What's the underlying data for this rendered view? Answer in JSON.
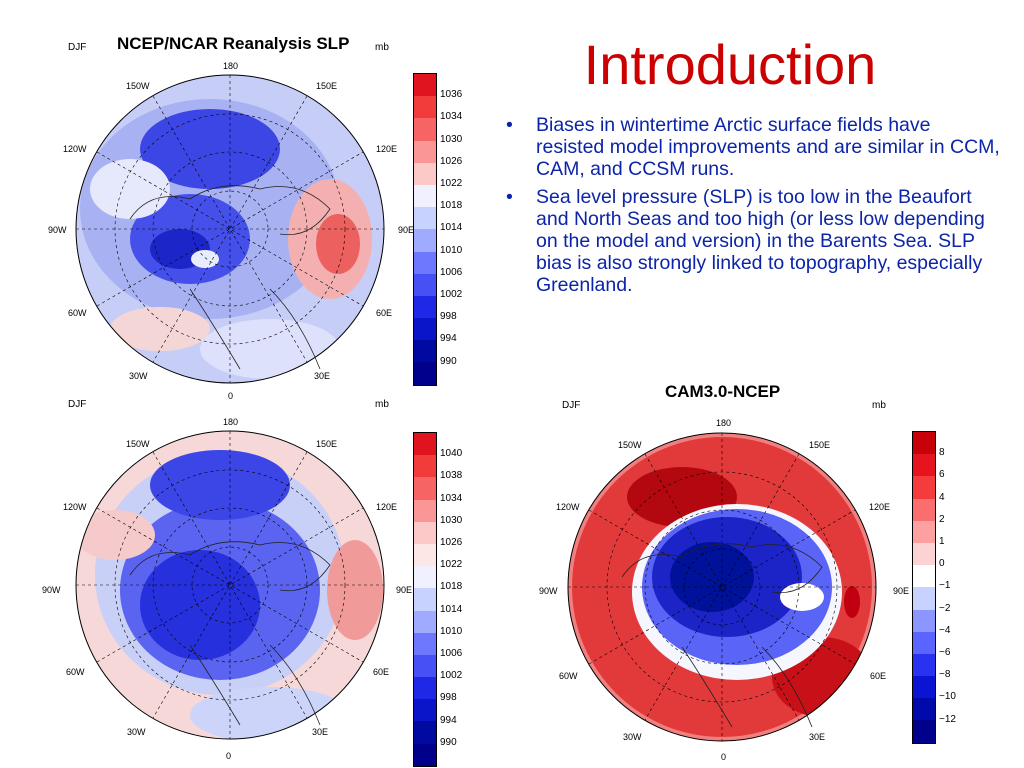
{
  "slide": {
    "title": "Introduction",
    "bullets": [
      "Biases in wintertime Arctic surface fields have resisted model improvements and are similar in CCM, CAM, and CCSM runs.",
      "Sea level pressure (SLP) is too low in the Beaufort and North Seas and too high (or less low depending on the model and version) in the Barents Sea. SLP bias is also strongly linked to topography, especially Greenland."
    ]
  },
  "maps": [
    {
      "title": "NCEP/NCAR Reanalysis SLP",
      "season": "DJF",
      "units": "mb",
      "lon_labels": {
        "top": "180",
        "tl": "150W",
        "tr": "150E",
        "l2": "120W",
        "r2": "120E",
        "left": "90W",
        "right": "90E",
        "bl2": "60W",
        "br2": "60E",
        "bl": "30W",
        "br": "30E",
        "bottom": "0"
      },
      "colorbar": {
        "labels": [
          "1036",
          "1034",
          "1030",
          "1026",
          "1022",
          "1018",
          "1014",
          "1010",
          "1006",
          "1002",
          "998",
          "994",
          "990"
        ],
        "colors": [
          "#e0141e",
          "#f23c3c",
          "#f76464",
          "#fa9696",
          "#fcc8c8",
          "#f0f0ff",
          "#c8d2ff",
          "#a0aaff",
          "#6e78ff",
          "#4650f5",
          "#1e28e6",
          "#0a14c8",
          "#000aa0",
          "#00008c"
        ]
      }
    },
    {
      "title": "",
      "season": "DJF",
      "units": "mb",
      "lon_labels": {
        "top": "180",
        "tl": "150W",
        "tr": "150E",
        "l2": "120W",
        "r2": "120E",
        "left": "90W",
        "right": "90E",
        "bl2": "60W",
        "br2": "60E",
        "bl": "30W",
        "br": "30E",
        "bottom": "0"
      },
      "colorbar": {
        "labels": [
          "1040",
          "1038",
          "1034",
          "1030",
          "1026",
          "1022",
          "1018",
          "1014",
          "1010",
          "1006",
          "1002",
          "998",
          "994",
          "990"
        ],
        "colors": [
          "#e0141e",
          "#f23c3c",
          "#f76464",
          "#fa9696",
          "#fcc8c8",
          "#fde6e6",
          "#f0f0ff",
          "#c8d2ff",
          "#a0aaff",
          "#6e78ff",
          "#4650f5",
          "#1e28e6",
          "#0a14c8",
          "#000aa0",
          "#00008c"
        ]
      }
    },
    {
      "title": "CAM3.0-NCEP",
      "season": "DJF",
      "units": "mb",
      "lon_labels": {
        "top": "180",
        "tl": "150W",
        "tr": "150E",
        "l2": "120W",
        "r2": "120E",
        "left": "90W",
        "right": "90E",
        "bl2": "60W",
        "br2": "60E",
        "bl": "30W",
        "br": "30E",
        "bottom": "0"
      },
      "colorbar": {
        "labels": [
          "8",
          "6",
          "4",
          "2",
          "1",
          "0",
          "−1",
          "−2",
          "−4",
          "−6",
          "−8",
          "−10",
          "−12"
        ],
        "colors": [
          "#c8000a",
          "#e6141e",
          "#f53c3c",
          "#fa6e6e",
          "#fca0a0",
          "#fdd2d2",
          "#ffffff",
          "#c8d2ff",
          "#8c96ff",
          "#5a64ff",
          "#2832f0",
          "#0a14d2",
          "#000aaa",
          "#00008c"
        ]
      }
    }
  ]
}
